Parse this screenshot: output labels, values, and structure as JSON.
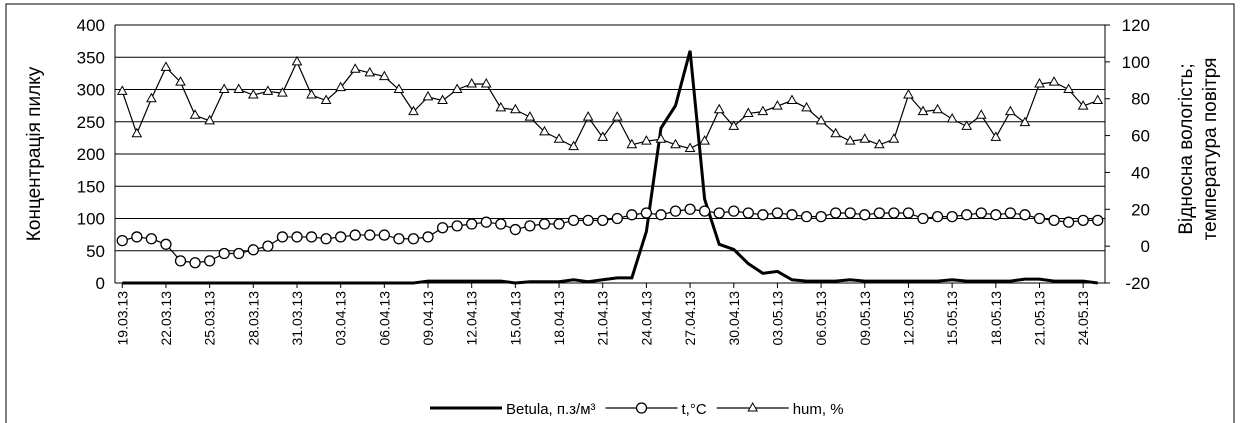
{
  "chart_data": {
    "type": "line",
    "categories": [
      "19.03.13",
      null,
      null,
      "22.03.13",
      null,
      null,
      "25.03.13",
      null,
      null,
      "28.03.13",
      null,
      null,
      "31.03.13",
      null,
      null,
      "03.04.13",
      null,
      null,
      "06.04.13",
      null,
      null,
      "09.04.13",
      null,
      null,
      "12.04.13",
      null,
      null,
      "15.04.13",
      null,
      null,
      "18.04.13",
      null,
      null,
      "21.04.13",
      null,
      null,
      "24.04.13",
      null,
      null,
      "27.04.13",
      null,
      null,
      "30.04.13",
      null,
      null,
      "03.05.13",
      null,
      null,
      "06.05.13",
      null,
      null,
      "09.05.13",
      null,
      null,
      "12.05.13",
      null,
      null,
      "15.05.13",
      null,
      null,
      "18.05.13",
      null,
      null,
      "21.05.13",
      null,
      null,
      "24.05.13",
      null
    ],
    "ylabel": "Концентрація пилку",
    "y2label": [
      "Відносна вологість;",
      "температура повітря"
    ],
    "ylim": [
      0,
      400
    ],
    "yticks": [
      0,
      50,
      100,
      150,
      200,
      250,
      300,
      350,
      400
    ],
    "y2lim": [
      -20,
      120
    ],
    "y2ticks": [
      -20,
      0,
      20,
      40,
      60,
      80,
      100,
      120
    ],
    "grid": true,
    "legend": "bottom",
    "series": [
      {
        "name": "Betula, п.з/м³",
        "color": "#000000",
        "marker": "none",
        "values": [
          0,
          0,
          0,
          0,
          0,
          0,
          0,
          0,
          0,
          0,
          0,
          0,
          0,
          0,
          0,
          0,
          0,
          0,
          0,
          0,
          0,
          3,
          3,
          3,
          3,
          3,
          3,
          0,
          2,
          2,
          2,
          5,
          2,
          5,
          8,
          8,
          80,
          240,
          275,
          360,
          130,
          60,
          52,
          30,
          15,
          18,
          5,
          3,
          3,
          3,
          5,
          3,
          3,
          3,
          3,
          3,
          3,
          5,
          3,
          3,
          3,
          3,
          6,
          6,
          3,
          3,
          3,
          0
        ]
      },
      {
        "name": "t,°C",
        "color": "#000000",
        "marker": "circle",
        "axis": "y2",
        "values": [
          3,
          5,
          4,
          1,
          -8,
          -9,
          -8,
          -4,
          -4,
          -2,
          0,
          5,
          5,
          5,
          4,
          5,
          6,
          6,
          6,
          4,
          4,
          5,
          10,
          11,
          12,
          13,
          12,
          9,
          11,
          12,
          12,
          14,
          14,
          14,
          15,
          17,
          18,
          17,
          19,
          20,
          19,
          18,
          19,
          18,
          17,
          18,
          17,
          16,
          16,
          18,
          18,
          17,
          18,
          18,
          18,
          15,
          16,
          16,
          17,
          18,
          17,
          18,
          17,
          15,
          14,
          13,
          14,
          14
        ]
      },
      {
        "name": "hum, %",
        "color": "#000000",
        "marker": "triangle",
        "axis": "y2",
        "values": [
          84,
          61,
          80,
          97,
          89,
          71,
          68,
          85,
          85,
          82,
          84,
          83,
          100,
          82,
          79,
          86,
          96,
          94,
          92,
          85,
          73,
          81,
          79,
          85,
          88,
          88,
          75,
          74,
          70,
          62,
          58,
          54,
          70,
          59,
          70,
          55,
          57,
          58,
          55,
          53,
          57,
          74,
          65,
          72,
          73,
          76,
          79,
          75,
          68,
          61,
          57,
          58,
          55,
          58,
          82,
          73,
          74,
          69,
          65,
          71,
          59,
          73,
          67,
          88,
          89,
          85,
          76,
          79
        ]
      }
    ]
  }
}
